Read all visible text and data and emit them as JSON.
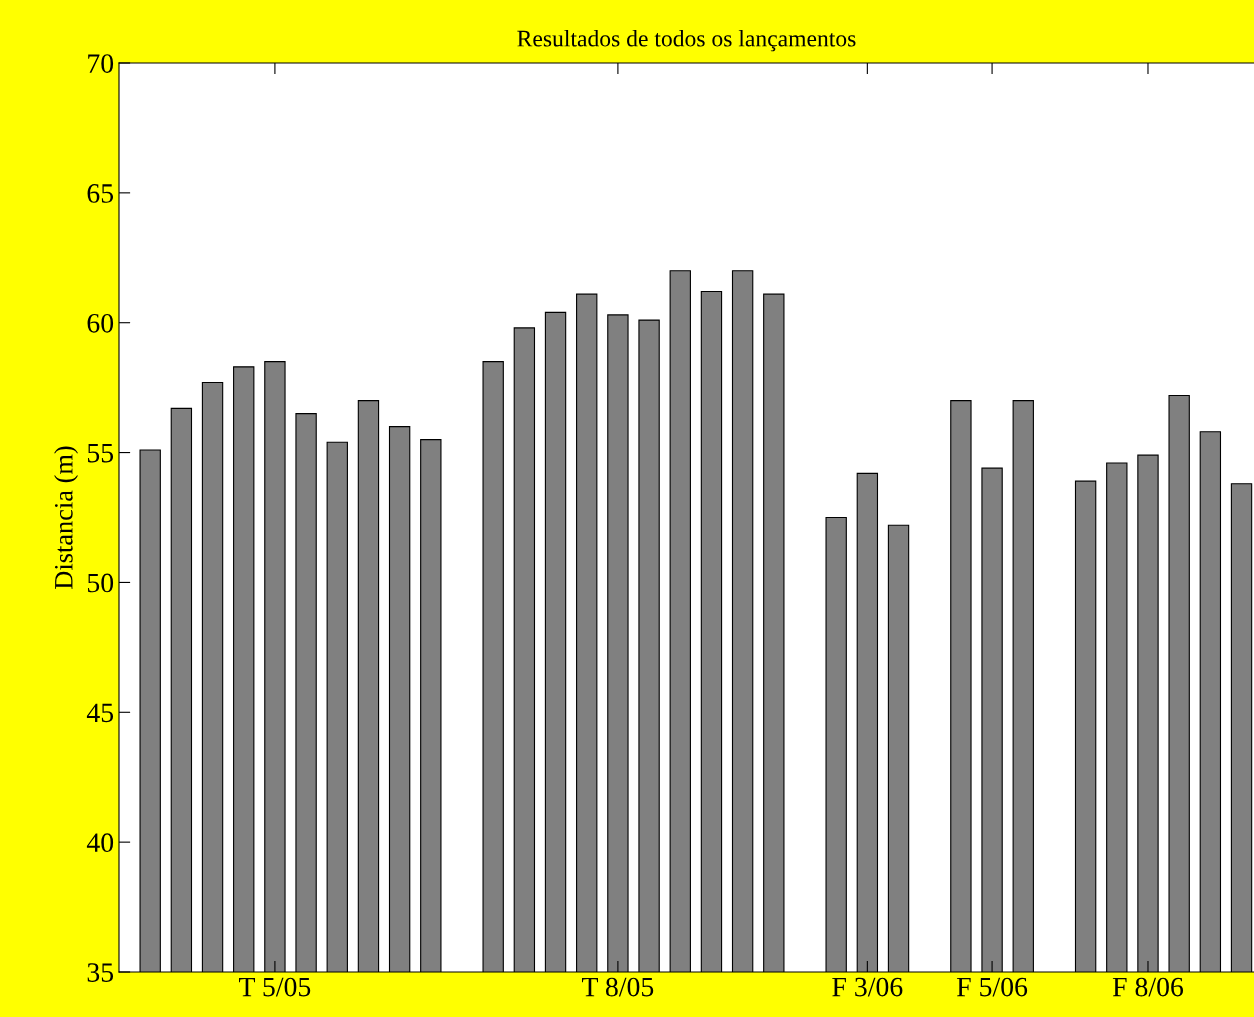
{
  "chart_data": {
    "type": "bar",
    "title": "Resultados de todos os lançamentos",
    "ylabel": "Distancia (m)",
    "categories": [
      null,
      null,
      null,
      null,
      "T 5/05",
      null,
      null,
      null,
      null,
      null,
      null,
      null,
      null,
      null,
      null,
      "T 8/05",
      null,
      null,
      null,
      null,
      null,
      null,
      null,
      "F 3/06",
      null,
      null,
      null,
      "F 5/06",
      null,
      null,
      null,
      null,
      "F 8/06",
      null,
      null,
      null
    ],
    "values": [
      55.1,
      56.7,
      57.7,
      58.3,
      58.5,
      56.5,
      55.4,
      57.0,
      56.0,
      55.5,
      null,
      58.5,
      59.8,
      60.4,
      61.1,
      60.3,
      60.1,
      62.0,
      61.2,
      62.0,
      61.1,
      null,
      52.5,
      54.2,
      52.2,
      null,
      57.0,
      54.4,
      57.0,
      null,
      53.9,
      54.6,
      54.9,
      57.2,
      55.8,
      53.8
    ],
    "color": "#808080",
    "ylim": [
      35,
      70
    ],
    "yticks": [
      35,
      40,
      45,
      50,
      55,
      60,
      65,
      70
    ],
    "grid": false,
    "legend": false
  }
}
